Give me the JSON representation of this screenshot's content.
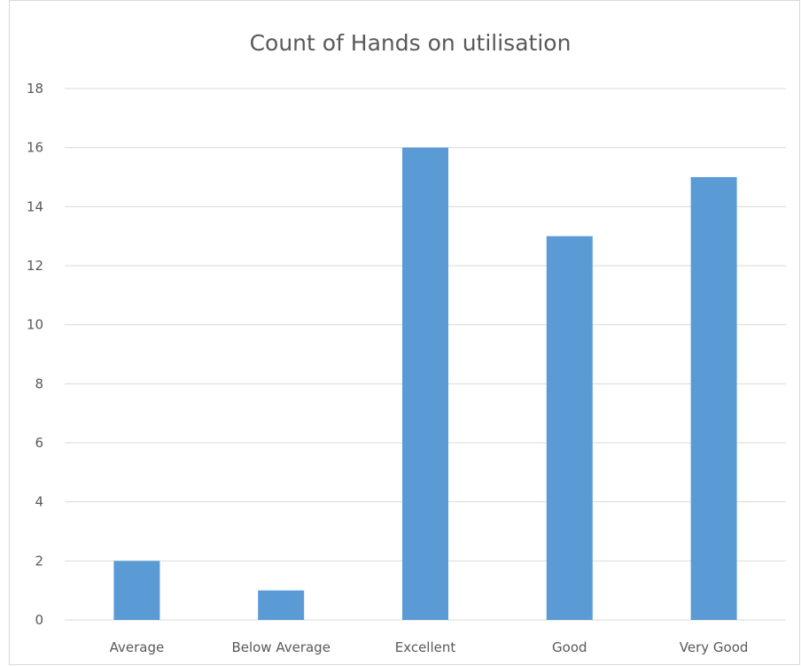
{
  "chart_data": {
    "type": "bar",
    "title": "Count of Hands on utilisation",
    "xlabel": "",
    "ylabel": "",
    "categories": [
      "Average",
      "Below Average",
      "Excellent",
      "Good",
      "Very Good"
    ],
    "values": [
      2,
      1,
      16,
      13,
      15
    ],
    "ylim": [
      0,
      18
    ],
    "yticks": [
      0,
      2,
      4,
      6,
      8,
      10,
      12,
      14,
      16,
      18
    ],
    "grid": true,
    "legend": "none",
    "colors": {
      "bar": "#5b9bd5",
      "grid": "#d9d9d9",
      "text": "#595959"
    }
  }
}
